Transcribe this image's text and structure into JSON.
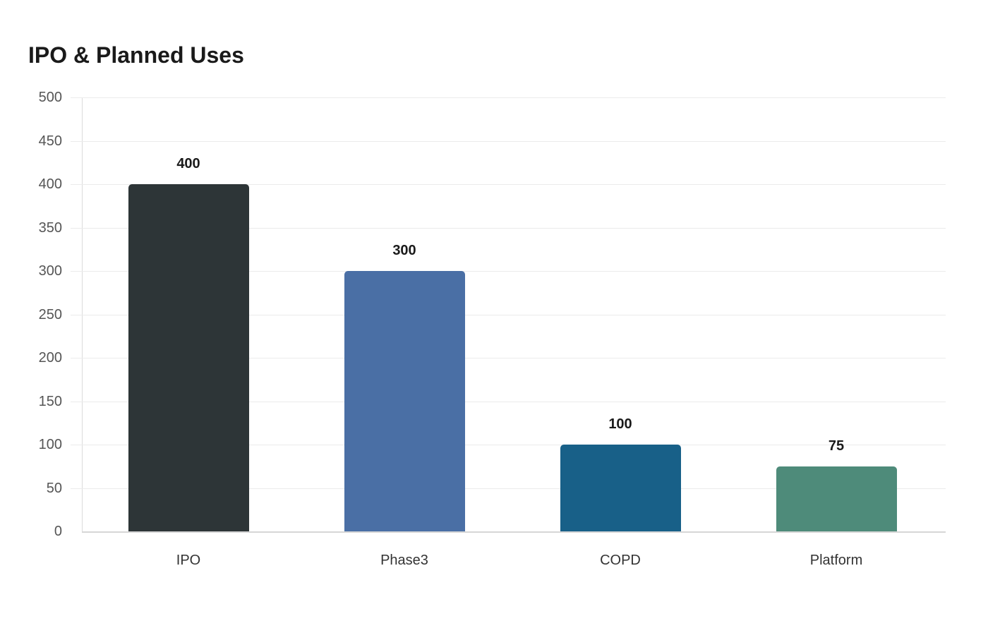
{
  "title": "IPO & Planned Uses",
  "chart_data": {
    "type": "bar",
    "title": "IPO & Planned Uses",
    "categories": [
      "IPO",
      "Phase3",
      "COPD",
      "Platform"
    ],
    "values": [
      400,
      300,
      100,
      75
    ],
    "colors": [
      "#2d3537",
      "#4a6fa5",
      "#186088",
      "#4e8b7a"
    ],
    "xlabel": "",
    "ylabel": "",
    "ylim": [
      0,
      500
    ],
    "yticks": [
      0,
      50,
      100,
      150,
      200,
      250,
      300,
      350,
      400,
      450,
      500
    ],
    "grid": true,
    "legend": null,
    "data_labels": [
      "400",
      "300",
      "100",
      "75"
    ]
  }
}
